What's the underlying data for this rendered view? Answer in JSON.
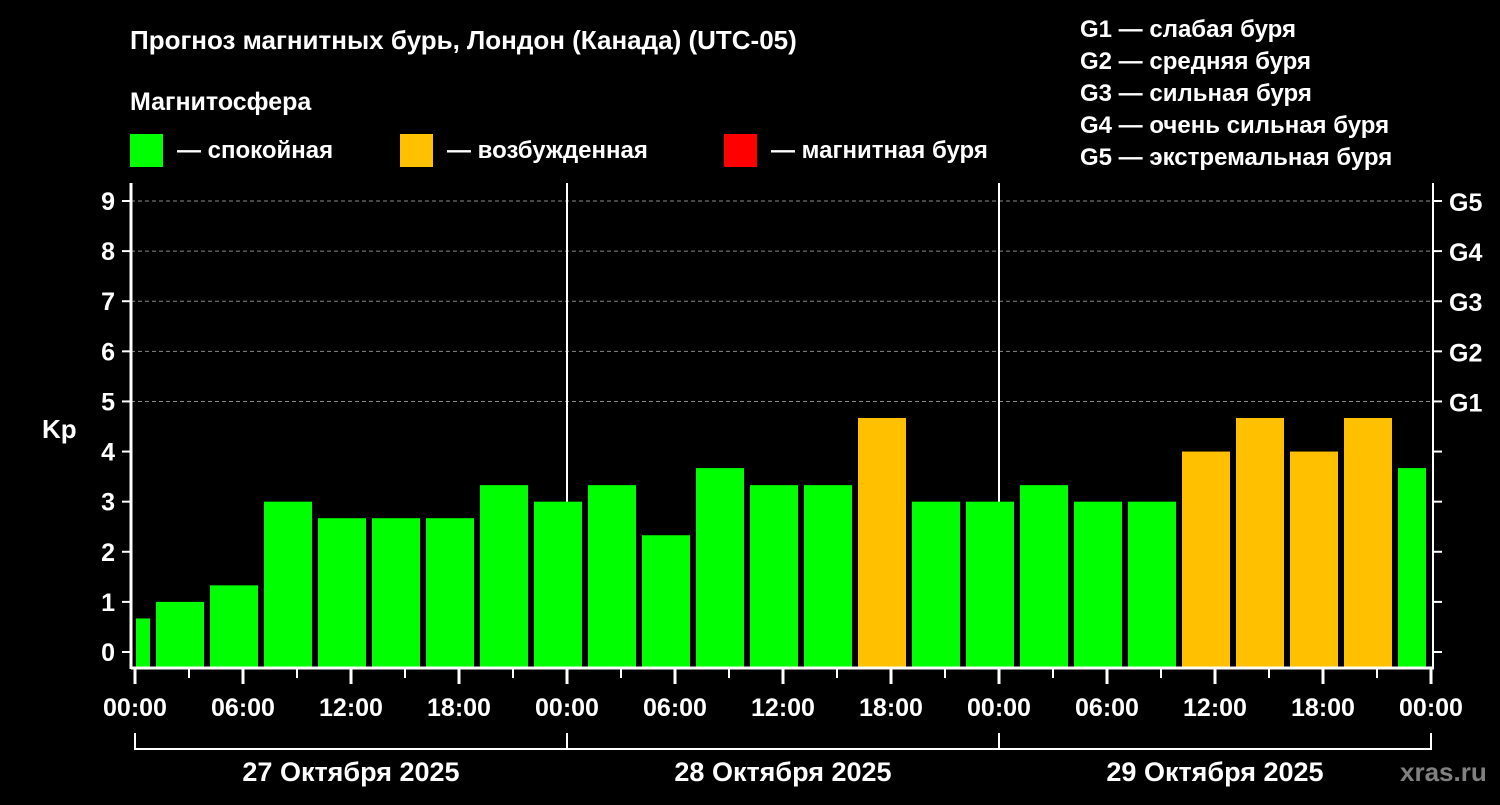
{
  "chart_data": {
    "type": "bar",
    "title": "Прогноз магнитных бурь, Лондон (Канада) (UTC-05)",
    "subtitle": "Магнитосфера",
    "ylabel": "Kp",
    "ylim": [
      0,
      9
    ],
    "yticks": [
      "0",
      "1",
      "2",
      "3",
      "4",
      "5",
      "6",
      "7",
      "8",
      "9"
    ],
    "g_ticks": [
      {
        "kp": 5,
        "label": "G1"
      },
      {
        "kp": 6,
        "label": "G2"
      },
      {
        "kp": 7,
        "label": "G3"
      },
      {
        "kp": 8,
        "label": "G4"
      },
      {
        "kp": 9,
        "label": "G5"
      }
    ],
    "xticks": [
      "00:00",
      "06:00",
      "12:00",
      "18:00",
      "00:00",
      "06:00",
      "12:00",
      "18:00",
      "00:00",
      "06:00",
      "12:00",
      "18:00",
      "00:00"
    ],
    "days": [
      "27 Октября 2025",
      "28 Октября 2025",
      "29 Октября 2025"
    ],
    "legend": [
      {
        "label": "— спокойная",
        "color": "#00ff00"
      },
      {
        "label": "— возбужденная",
        "color": "#ffc000"
      },
      {
        "label": "— магнитная буря",
        "color": "#ff0000"
      }
    ],
    "scale_legend": [
      "G1 — слабая буря",
      "G2 — средняя буря",
      "G3 — сильная буря",
      "G4 — очень сильная буря",
      "G5 — экстремальная буря"
    ],
    "bars": [
      {
        "start_h": -2,
        "end_h": 1,
        "kp": 0.67,
        "state": "quiet"
      },
      {
        "start_h": 1,
        "end_h": 4,
        "kp": 1.0,
        "state": "quiet"
      },
      {
        "start_h": 4,
        "end_h": 7,
        "kp": 1.33,
        "state": "quiet"
      },
      {
        "start_h": 7,
        "end_h": 10,
        "kp": 3.0,
        "state": "quiet"
      },
      {
        "start_h": 10,
        "end_h": 13,
        "kp": 2.67,
        "state": "quiet"
      },
      {
        "start_h": 13,
        "end_h": 16,
        "kp": 2.67,
        "state": "quiet"
      },
      {
        "start_h": 16,
        "end_h": 19,
        "kp": 2.67,
        "state": "quiet"
      },
      {
        "start_h": 19,
        "end_h": 22,
        "kp": 3.33,
        "state": "quiet"
      },
      {
        "start_h": 22,
        "end_h": 25,
        "kp": 3.0,
        "state": "quiet"
      },
      {
        "start_h": 25,
        "end_h": 28,
        "kp": 3.33,
        "state": "quiet"
      },
      {
        "start_h": 28,
        "end_h": 31,
        "kp": 2.33,
        "state": "quiet"
      },
      {
        "start_h": 31,
        "end_h": 34,
        "kp": 3.67,
        "state": "quiet"
      },
      {
        "start_h": 34,
        "end_h": 37,
        "kp": 3.33,
        "state": "quiet"
      },
      {
        "start_h": 37,
        "end_h": 40,
        "kp": 3.33,
        "state": "quiet"
      },
      {
        "start_h": 40,
        "end_h": 43,
        "kp": 4.67,
        "state": "active"
      },
      {
        "start_h": 43,
        "end_h": 46,
        "kp": 3.0,
        "state": "quiet"
      },
      {
        "start_h": 46,
        "end_h": 49,
        "kp": 3.0,
        "state": "quiet"
      },
      {
        "start_h": 49,
        "end_h": 52,
        "kp": 3.33,
        "state": "quiet"
      },
      {
        "start_h": 52,
        "end_h": 55,
        "kp": 3.0,
        "state": "quiet"
      },
      {
        "start_h": 55,
        "end_h": 58,
        "kp": 3.0,
        "state": "quiet"
      },
      {
        "start_h": 58,
        "end_h": 61,
        "kp": 4.0,
        "state": "active"
      },
      {
        "start_h": 61,
        "end_h": 64,
        "kp": 4.67,
        "state": "active"
      },
      {
        "start_h": 64,
        "end_h": 67,
        "kp": 4.0,
        "state": "active"
      },
      {
        "start_h": 67,
        "end_h": 70,
        "kp": 4.67,
        "state": "active"
      },
      {
        "start_h": 70,
        "end_h": 73,
        "kp": 3.67,
        "state": "quiet"
      }
    ],
    "state_colors": {
      "quiet": "#00ff00",
      "active": "#ffc000",
      "storm": "#ff0000"
    },
    "watermark": "xras.ru"
  }
}
